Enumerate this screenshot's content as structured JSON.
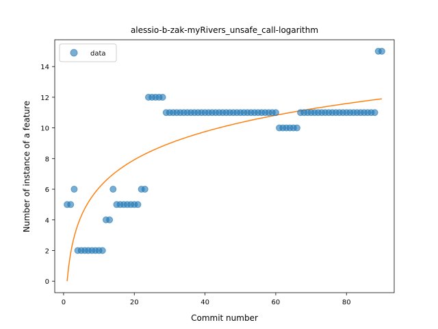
{
  "chart_data": {
    "type": "scatter",
    "title": "alessio-b-zak-myRivers_unsafe_call-logarithm",
    "xlabel": "Commit number",
    "ylabel": "Number of instance of a feature",
    "xlim": [
      -2.5,
      93.5
    ],
    "ylim": [
      -0.75,
      15.75
    ],
    "xticks": [
      0,
      20,
      40,
      60,
      80
    ],
    "yticks": [
      0,
      2,
      4,
      6,
      8,
      10,
      12,
      14
    ],
    "grid": false,
    "legend": {
      "position": "top-left",
      "entries": [
        "data"
      ]
    },
    "colors": {
      "data": "#1f77b4",
      "fit": "#ff7f0e"
    },
    "series": [
      {
        "name": "data",
        "kind": "scatter",
        "x": [
          1,
          2,
          3,
          4,
          5,
          6,
          7,
          8,
          9,
          10,
          11,
          12,
          13,
          14,
          15,
          16,
          17,
          18,
          19,
          20,
          21,
          22,
          23,
          24,
          25,
          26,
          27,
          28,
          29,
          30,
          31,
          32,
          33,
          34,
          35,
          36,
          37,
          38,
          39,
          40,
          41,
          42,
          43,
          44,
          45,
          46,
          47,
          48,
          49,
          50,
          51,
          52,
          53,
          54,
          55,
          56,
          57,
          58,
          59,
          60,
          61,
          62,
          63,
          64,
          65,
          66,
          67,
          68,
          69,
          70,
          71,
          72,
          73,
          74,
          75,
          76,
          77,
          78,
          79,
          80,
          81,
          82,
          83,
          84,
          85,
          86,
          87,
          88,
          89,
          90
        ],
        "y": [
          5,
          5,
          6,
          2,
          2,
          2,
          2,
          2,
          2,
          2,
          2,
          4,
          4,
          6,
          5,
          5,
          5,
          5,
          5,
          5,
          5,
          6,
          6,
          12,
          12,
          12,
          12,
          12,
          11,
          11,
          11,
          11,
          11,
          11,
          11,
          11,
          11,
          11,
          11,
          11,
          11,
          11,
          11,
          11,
          11,
          11,
          11,
          11,
          11,
          11,
          11,
          11,
          11,
          11,
          11,
          11,
          11,
          11,
          11,
          11,
          10,
          10,
          10,
          10,
          10,
          10,
          11,
          11,
          11,
          11,
          11,
          11,
          11,
          11,
          11,
          11,
          11,
          11,
          11,
          11,
          11,
          11,
          11,
          11,
          11,
          11,
          11,
          11,
          15,
          15
        ]
      },
      {
        "kind": "line",
        "fit": {
          "a": 2.644,
          "b": 0,
          "x_start": 1,
          "x_end": 90
        }
      }
    ]
  }
}
